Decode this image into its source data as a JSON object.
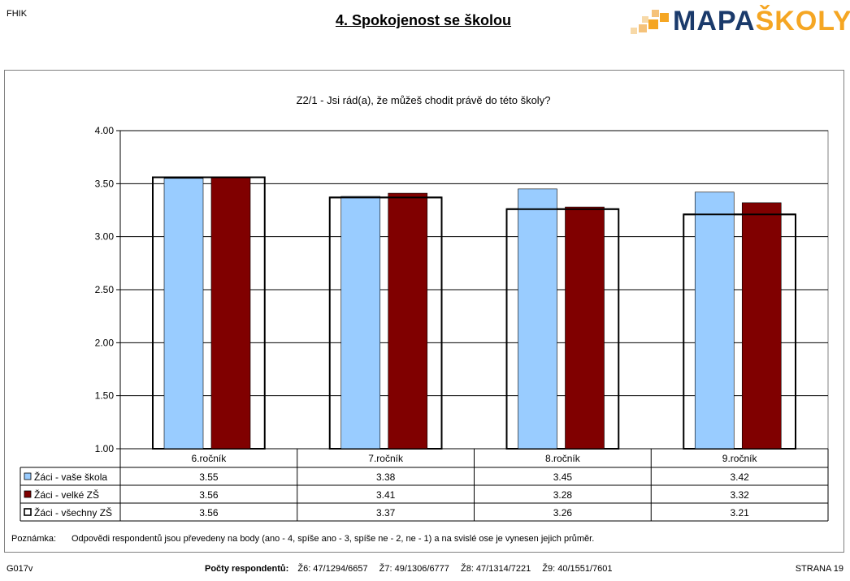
{
  "header": {
    "top_left": "FHIK",
    "title": "4. Spokojenost se školou",
    "logo_part1": "MAPA",
    "logo_part2": "ŠKOLY"
  },
  "colors": {
    "vase_skola": "#99ccff",
    "velke_zs": "#800000",
    "vsechny_zs": "#ffffff",
    "logo_blue": "#1a3a6b",
    "logo_orange": "#f5a623"
  },
  "chart_data": {
    "type": "bar",
    "title": "Z2/1 - Jsi rád(a), že můžeš chodit právě do této školy?",
    "categories": [
      "6.ročník",
      "7.ročník",
      "8.ročník",
      "9.ročník"
    ],
    "ylim": [
      1.0,
      4.0
    ],
    "yticks": [
      "1.00",
      "1.50",
      "2.00",
      "2.50",
      "3.00",
      "3.50",
      "4.00"
    ],
    "grid": true,
    "series": [
      {
        "name": "Žáci - vaše škola",
        "values": [
          3.55,
          3.38,
          3.45,
          3.42
        ],
        "labels": [
          "3.55",
          "3.38",
          "3.45",
          "3.42"
        ]
      },
      {
        "name": "Žáci - velké ZŠ",
        "values": [
          3.56,
          3.41,
          3.28,
          3.32
        ],
        "labels": [
          "3.56",
          "3.41",
          "3.28",
          "3.32"
        ]
      },
      {
        "name": "Žáci - všechny ZŠ",
        "values": [
          3.56,
          3.37,
          3.26,
          3.21
        ],
        "labels": [
          "3.56",
          "3.37",
          "3.26",
          "3.21"
        ]
      }
    ]
  },
  "note": {
    "label": "Poznámka:",
    "text": "Odpovědi respondentů jsou převedeny na body (ano - 4, spíše ano - 3, spíše ne - 2, ne - 1) a na svislé ose je vynesen jejich průměr."
  },
  "footer": {
    "left": "G017v",
    "counts_label": "Počty respondentů:",
    "counts": [
      "Ž6: 47/1294/6657",
      "Ž7: 49/1306/6777",
      "Ž8: 47/1314/7221",
      "Ž9: 40/1551/7601"
    ],
    "page": "STRANA 19"
  }
}
